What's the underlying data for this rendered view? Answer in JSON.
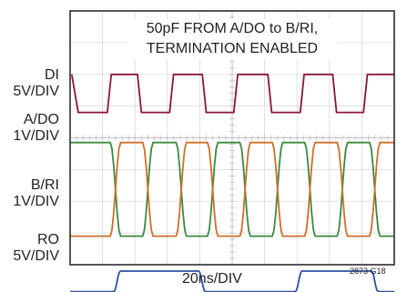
{
  "chart_data": {
    "type": "line",
    "title": "50pF FROM A/DO to B/RI, TERMINATION ENABLED",
    "annotation_lines": [
      "50pF FROM A/DO to B/RI,",
      "TERMINATION ENABLED"
    ],
    "xlabel": "20ns/DIV",
    "figure_id": "2873 G18",
    "x_unit": "div",
    "xlim": [
      0,
      10
    ],
    "divisions": {
      "x": 10,
      "y": 8
    },
    "grid": true,
    "channels": [
      {
        "label": "DI",
        "scale": "5V/DIV",
        "color": "#8b1538"
      },
      {
        "label": "A/DO",
        "scale": "1V/DIV",
        "color": "#3c8a3f"
      },
      {
        "label": "B/RI",
        "scale": "1V/DIV",
        "color": "#cf6f28"
      },
      {
        "label": "RO",
        "scale": "5V/DIV",
        "color": "#2e4fa0"
      }
    ],
    "series": [
      {
        "name": "DI",
        "color": "#8b1538",
        "x": [
          0,
          0.1,
          0.25,
          1.1,
          9.6,
          10
        ],
        "y": [
          6.0,
          6.0,
          4.8,
          4.8,
          4.8,
          4.8
        ],
        "edges": [
          {
            "x": 1.1,
            "to": 6.0
          },
          {
            "x": 2.1,
            "to": 6.0
          },
          {
            "x": 3.1,
            "to": 4.8
          },
          {
            "x": 4.1,
            "to": 4.8
          },
          {
            "x": 5.05,
            "to": 4.8
          },
          {
            "x": 6.1,
            "to": 6.0
          },
          {
            "x": 7.05,
            "to": 6.0
          }
        ],
        "levels": {
          "high": 6.0,
          "low": 4.8
        },
        "transitions": [
          {
            "x": 1.08,
            "dir": "down"
          },
          {
            "x": 2.06,
            "dir": "up"
          },
          {
            "x": 3.07,
            "dir": "down"
          },
          {
            "x": 4.07,
            "dir": "up"
          },
          {
            "x": 5.1,
            "dir": "down"
          },
          {
            "x": 6.12,
            "dir": "up"
          },
          {
            "x": 7.1,
            "dir": "down"
          },
          {
            "x": 9.0,
            "dir": "up"
          },
          {
            "x": 9.95,
            "dir": "down"
          }
        ]
      },
      {
        "name": "A/DO",
        "color": "#3c8a3f",
        "levels": {
          "high": 3.85,
          "low": 0.9
        },
        "start": "high",
        "transitions": [
          {
            "x": 0.95,
            "dir": "down"
          },
          {
            "x": 1.4,
            "dir": "down"
          },
          {
            "x": 2.45,
            "dir": "up"
          },
          {
            "x": 3.45,
            "dir": "down"
          },
          {
            "x": 4.45,
            "dir": "up"
          },
          {
            "x": 5.4,
            "dir": "down"
          },
          {
            "x": 6.4,
            "dir": "up"
          },
          {
            "x": 7.4,
            "dir": "down"
          },
          {
            "x": 8.4,
            "dir": "up"
          },
          {
            "x": 9.4,
            "dir": "down"
          }
        ],
        "edge_width_div": 0.25
      },
      {
        "name": "B/RI",
        "color": "#cf6f28",
        "levels": {
          "high": 3.85,
          "low": 0.9
        },
        "start": "low",
        "transitions": [
          {
            "x": 0.95,
            "dir": "up"
          },
          {
            "x": 1.4,
            "dir": "up"
          },
          {
            "x": 2.45,
            "dir": "down"
          },
          {
            "x": 3.45,
            "dir": "up"
          },
          {
            "x": 4.45,
            "dir": "down"
          },
          {
            "x": 5.4,
            "dir": "up"
          },
          {
            "x": 6.4,
            "dir": "down"
          },
          {
            "x": 7.4,
            "dir": "up"
          },
          {
            "x": 8.4,
            "dir": "down"
          },
          {
            "x": 9.4,
            "dir": "up"
          }
        ],
        "edge_width_div": 0.25
      },
      {
        "name": "RO",
        "color": "#2e4fa0",
        "levels": {
          "high": -0.2,
          "low": -0.85
        },
        "start": "low",
        "transitions": [
          {
            "x": 0.95,
            "dir": "up"
          },
          {
            "x": 1.4,
            "dir": "up"
          },
          {
            "x": 2.55,
            "dir": "down"
          },
          {
            "x": 3.45,
            "dir": "up"
          },
          {
            "x": 4.55,
            "dir": "down"
          },
          {
            "x": 5.4,
            "dir": "up"
          },
          {
            "x": 6.45,
            "dir": "down"
          },
          {
            "x": 7.4,
            "dir": "up"
          },
          {
            "x": 8.45,
            "dir": "down"
          },
          {
            "x": 9.4,
            "dir": "up"
          }
        ],
        "edge_width_div": 0.15
      }
    ]
  }
}
